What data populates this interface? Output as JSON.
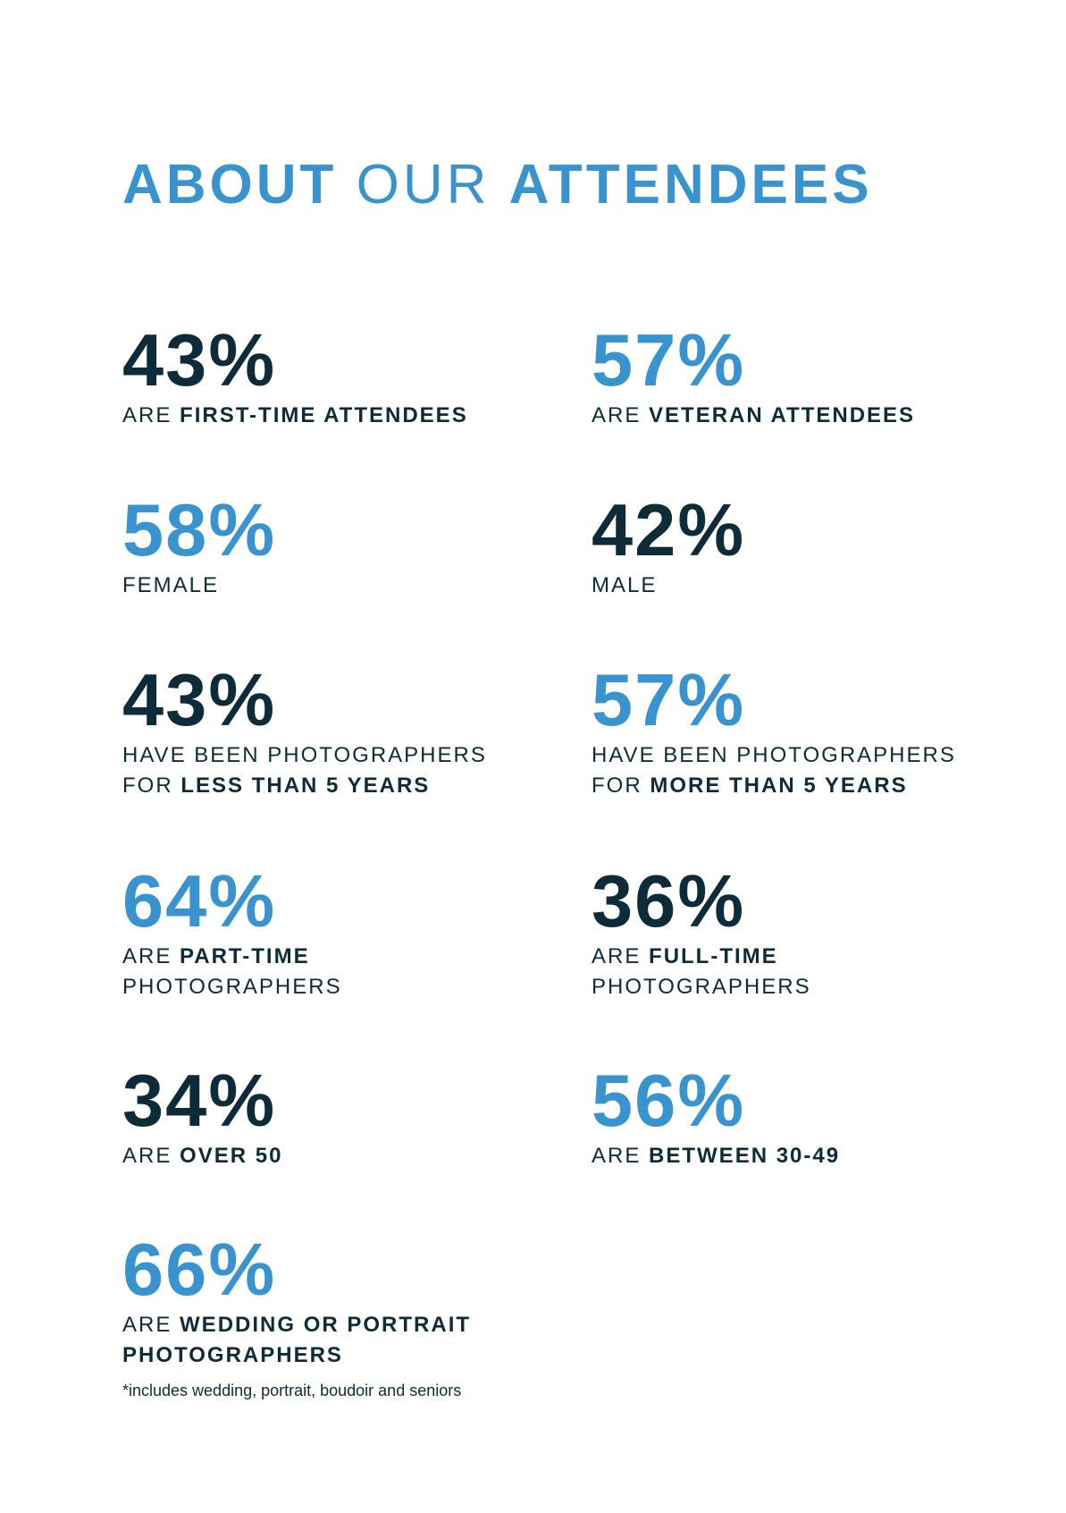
{
  "colors": {
    "accent_blue": "#3993cf",
    "dark_navy": "#0d2b38",
    "background": "#ffffff"
  },
  "title": {
    "part1": "ABOUT",
    "part2": "OUR",
    "part3": "ATTENDEES"
  },
  "stats": [
    {
      "value": "43%",
      "caption_lead": "ARE",
      "caption_bold": "FIRST-TIME ATTENDEES"
    },
    {
      "value": "57%",
      "caption_lead": "ARE",
      "caption_bold": "VETERAN ATTENDEES"
    },
    {
      "value": "58%",
      "caption": "FEMALE"
    },
    {
      "value": "42%",
      "caption": "MALE"
    },
    {
      "value": "43%",
      "caption_line1": "HAVE BEEN PHOTOGRAPHERS",
      "caption_lead": "FOR",
      "caption_bold": "LESS THAN 5 YEARS"
    },
    {
      "value": "57%",
      "caption_line1": "HAVE BEEN PHOTOGRAPHERS",
      "caption_lead": "FOR",
      "caption_bold": "MORE THAN 5 YEARS"
    },
    {
      "value": "64%",
      "caption_lead": "ARE",
      "caption_bold": "PART-TIME",
      "caption_line2": "PHOTOGRAPHERS"
    },
    {
      "value": "36%",
      "caption_lead": "ARE",
      "caption_bold": "FULL-TIME",
      "caption_line2": "PHOTOGRAPHERS"
    },
    {
      "value": "34%",
      "caption_lead": "ARE",
      "caption_bold": "OVER 50"
    },
    {
      "value": "56%",
      "caption_lead": "ARE",
      "caption_bold": "BETWEEN 30-49"
    },
    {
      "value": "66%",
      "caption_lead": "ARE",
      "caption_bold": "WEDDING OR PORTRAIT",
      "caption_bold_line2": "PHOTOGRAPHERS",
      "footnote": "*includes wedding, portrait, boudoir and seniors"
    }
  ]
}
